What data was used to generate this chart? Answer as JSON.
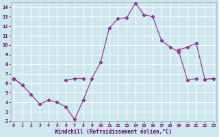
{
  "xlabel": "Windchill (Refroidissement éolien,°C)",
  "bg_color": "#cce8ee",
  "line_color": "#993399",
  "grid_color": "#ffffff",
  "x": [
    0,
    1,
    2,
    3,
    4,
    5,
    6,
    7,
    8,
    9,
    10,
    11,
    12,
    13,
    14,
    15,
    16,
    17,
    18,
    19,
    20,
    21,
    22,
    23
  ],
  "y1": [
    6.5,
    5.8,
    4.8,
    3.8,
    4.2,
    4.0,
    3.5,
    2.2,
    4.2,
    6.5,
    8.2,
    11.8,
    12.8,
    12.9,
    14.4,
    13.2,
    13.0,
    10.5,
    9.8,
    9.3,
    6.3,
    6.5,
    null,
    null
  ],
  "y2": [
    6.5,
    5.8,
    null,
    null,
    null,
    null,
    6.3,
    6.5,
    6.5,
    null,
    null,
    null,
    null,
    null,
    null,
    null,
    null,
    null,
    null,
    9.5,
    9.8,
    10.2,
    6.4,
    6.5
  ],
  "y3": [
    6.5,
    null,
    null,
    null,
    null,
    null,
    null,
    null,
    null,
    null,
    null,
    null,
    null,
    null,
    null,
    null,
    null,
    null,
    null,
    null,
    null,
    null,
    6.4,
    6.5
  ],
  "yticks": [
    2,
    3,
    4,
    5,
    6,
    7,
    8,
    9,
    10,
    11,
    12,
    13,
    14
  ],
  "xticks": [
    0,
    1,
    2,
    3,
    4,
    5,
    6,
    7,
    8,
    9,
    10,
    11,
    12,
    13,
    14,
    15,
    16,
    17,
    18,
    19,
    20,
    21,
    22,
    23
  ],
  "ylim": [
    2,
    14.5
  ],
  "xlim": [
    -0.3,
    23.3
  ]
}
